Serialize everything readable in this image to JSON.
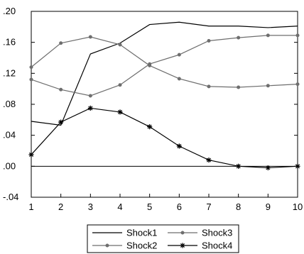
{
  "chart_data": {
    "type": "line",
    "title": "",
    "xlabel": "",
    "ylabel": "",
    "x": [
      1,
      2,
      3,
      4,
      5,
      6,
      7,
      8,
      9,
      10
    ],
    "xlim": [
      1,
      10
    ],
    "ylim": [
      -0.04,
      0.2
    ],
    "y_ticks": [
      -0.04,
      0.0,
      0.04,
      0.08,
      0.12,
      0.16,
      0.2
    ],
    "y_tick_labels": [
      "-.04",
      ".00",
      ".04",
      ".08",
      ".12",
      ".16",
      ".20"
    ],
    "x_tick_labels": [
      "1",
      "2",
      "3",
      "4",
      "5",
      "6",
      "7",
      "8",
      "9",
      "10"
    ],
    "zero_line": true,
    "grid": false,
    "legend_position": "bottom-center",
    "series": [
      {
        "name": "Shock1",
        "marker": "none",
        "color": "#000000",
        "values": [
          0.058,
          0.053,
          0.145,
          0.159,
          0.183,
          0.186,
          0.181,
          0.181,
          0.179,
          0.181
        ]
      },
      {
        "name": "Shock2",
        "marker": "dot",
        "color": "#6e6e6e",
        "values": [
          0.128,
          0.159,
          0.167,
          0.157,
          0.13,
          0.113,
          0.103,
          0.102,
          0.104,
          0.106
        ]
      },
      {
        "name": "Shock3",
        "marker": "dot",
        "color": "#6e6e6e",
        "values": [
          0.112,
          0.099,
          0.091,
          0.105,
          0.132,
          0.144,
          0.162,
          0.166,
          0.169,
          0.169
        ]
      },
      {
        "name": "Shock4",
        "marker": "star",
        "color": "#000000",
        "values": [
          0.015,
          0.057,
          0.075,
          0.07,
          0.051,
          0.026,
          0.008,
          0.0,
          -0.002,
          0.0
        ]
      }
    ],
    "legend_order": [
      "Shock1",
      "Shock3",
      "Shock2",
      "Shock4"
    ]
  }
}
